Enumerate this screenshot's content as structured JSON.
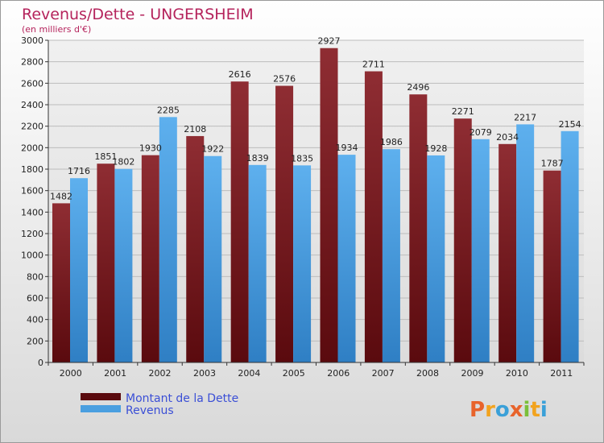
{
  "chart_data": {
    "type": "bar",
    "title": "Revenus/Dette - UNGERSHEIM",
    "subtitle": "(en milliers d'€)",
    "categories": [
      "2000",
      "2001",
      "2002",
      "2003",
      "2004",
      "2005",
      "2006",
      "2007",
      "2008",
      "2009",
      "2010",
      "2011"
    ],
    "series": [
      {
        "name": "Montant de la Dette",
        "values": [
          1482,
          1851,
          1930,
          2108,
          2616,
          2576,
          2927,
          2711,
          2496,
          2271,
          2034,
          1787
        ]
      },
      {
        "name": "Revenus",
        "values": [
          1716,
          1802,
          2285,
          1922,
          1839,
          1835,
          1934,
          1986,
          1928,
          2079,
          2217,
          2154
        ]
      }
    ],
    "ylim": [
      0,
      3000
    ],
    "yticks": [
      0,
      200,
      400,
      600,
      800,
      1000,
      1200,
      1400,
      1600,
      1800,
      2000,
      2200,
      2400,
      2600,
      2800,
      3000
    ],
    "grid": true,
    "legend_position": "bottom-left",
    "colors": {
      "debt": "#7a1e24",
      "revenue": "#4a9fe0",
      "title": "#b5235c",
      "legend_text": "#3b4fd6"
    }
  },
  "logo": {
    "text": "Proxiti"
  }
}
